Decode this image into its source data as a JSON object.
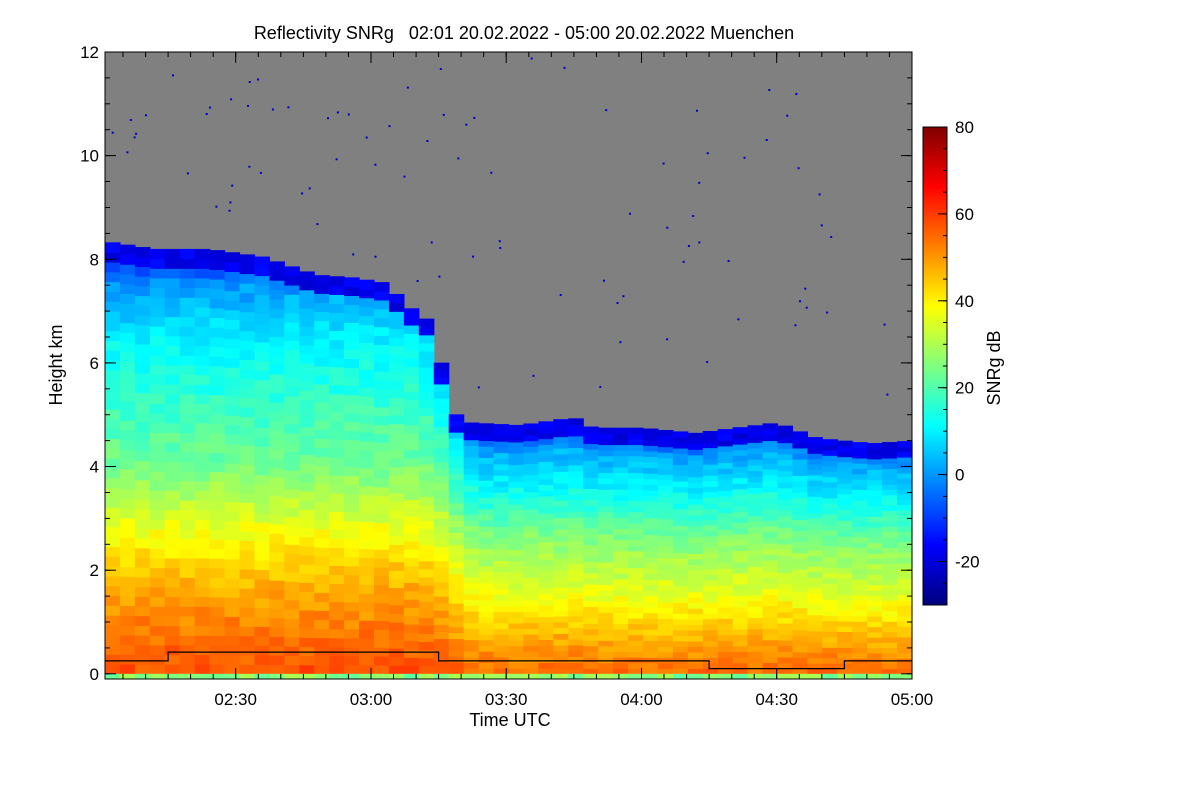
{
  "chart_data": {
    "type": "heatmap",
    "title": "Reflectivity SNRg   02:01 20.02.2022 - 05:00 20.02.2022 Muenchen",
    "xlabel": "Time UTC",
    "ylabel": "Height km",
    "xlim_hours": [
      2.0167,
      5.0
    ],
    "ylim_km": [
      -0.1,
      12.0
    ],
    "x_ticks": [
      {
        "value": 2.5,
        "label": "02:30"
      },
      {
        "value": 3.0,
        "label": "03:00"
      },
      {
        "value": 3.5,
        "label": "03:30"
      },
      {
        "value": 4.0,
        "label": "04:00"
      },
      {
        "value": 4.5,
        "label": "04:30"
      },
      {
        "value": 5.0,
        "label": "05:00"
      }
    ],
    "y_ticks": [
      {
        "value": 0,
        "label": "0"
      },
      {
        "value": 2,
        "label": "2"
      },
      {
        "value": 4,
        "label": "4"
      },
      {
        "value": 6,
        "label": "6"
      },
      {
        "value": 8,
        "label": "8"
      },
      {
        "value": 10,
        "label": "10"
      },
      {
        "value": 12,
        "label": "12"
      }
    ],
    "colorbar": {
      "label": "SNRg dB",
      "range": [
        -30,
        80
      ],
      "ticks": [
        {
          "value": -20,
          "label": "-20"
        },
        {
          "value": 0,
          "label": "0"
        },
        {
          "value": 20,
          "label": "20"
        },
        {
          "value": 40,
          "label": "40"
        },
        {
          "value": 60,
          "label": "60"
        },
        {
          "value": 80,
          "label": "80"
        }
      ],
      "colormap": [
        "#00007f",
        "#0000ff",
        "#007fff",
        "#00ffff",
        "#7fff7f",
        "#ffff00",
        "#ff7f00",
        "#ff0000",
        "#7f0000"
      ]
    },
    "no_signal_color": "#808080",
    "echo_top_km": [
      {
        "t": 2.0167,
        "h": 8.35
      },
      {
        "t": 2.2,
        "h": 8.2
      },
      {
        "t": 2.4,
        "h": 8.2
      },
      {
        "t": 2.6,
        "h": 8.05
      },
      {
        "t": 2.8,
        "h": 7.7
      },
      {
        "t": 2.93,
        "h": 7.65
      },
      {
        "t": 3.05,
        "h": 7.55
      },
      {
        "t": 3.15,
        "h": 7.05
      },
      {
        "t": 3.22,
        "h": 6.8
      },
      {
        "t": 3.26,
        "h": 6.0
      },
      {
        "t": 3.3,
        "h": 5.05
      },
      {
        "t": 3.37,
        "h": 4.85
      },
      {
        "t": 3.55,
        "h": 4.8
      },
      {
        "t": 3.75,
        "h": 4.95
      },
      {
        "t": 3.82,
        "h": 4.75
      },
      {
        "t": 4.0,
        "h": 4.75
      },
      {
        "t": 4.2,
        "h": 4.65
      },
      {
        "t": 4.5,
        "h": 4.85
      },
      {
        "t": 4.65,
        "h": 4.55
      },
      {
        "t": 4.85,
        "h": 4.45
      },
      {
        "t": 5.0,
        "h": 4.5
      }
    ],
    "profile_early_db": [
      {
        "h": 0.0,
        "db": 58
      },
      {
        "h": 0.6,
        "db": 55
      },
      {
        "h": 2.0,
        "db": 45
      },
      {
        "h": 3.0,
        "db": 35
      },
      {
        "h": 4.0,
        "db": 24
      },
      {
        "h": 5.0,
        "db": 18
      },
      {
        "h": 6.5,
        "db": 10
      },
      {
        "h": 7.5,
        "db": 0
      },
      {
        "h": 8.3,
        "db": -18
      }
    ],
    "profile_late_db": [
      {
        "h": 0.0,
        "db": 55
      },
      {
        "h": 0.6,
        "db": 48
      },
      {
        "h": 1.5,
        "db": 36
      },
      {
        "h": 2.5,
        "db": 25
      },
      {
        "h": 3.3,
        "db": 12
      },
      {
        "h": 4.0,
        "db": 2
      },
      {
        "h": 4.5,
        "db": -15
      }
    ],
    "boundary_line_km": [
      {
        "t": 2.0167,
        "h": 0.25
      },
      {
        "t": 2.25,
        "h": 0.25
      },
      {
        "t": 2.25,
        "h": 0.42
      },
      {
        "t": 3.25,
        "h": 0.42
      },
      {
        "t": 3.25,
        "h": 0.25
      },
      {
        "t": 4.25,
        "h": 0.25
      },
      {
        "t": 4.25,
        "h": 0.1
      },
      {
        "t": 4.75,
        "h": 0.1
      },
      {
        "t": 4.75,
        "h": 0.25
      },
      {
        "t": 5.0,
        "h": 0.25
      }
    ]
  }
}
